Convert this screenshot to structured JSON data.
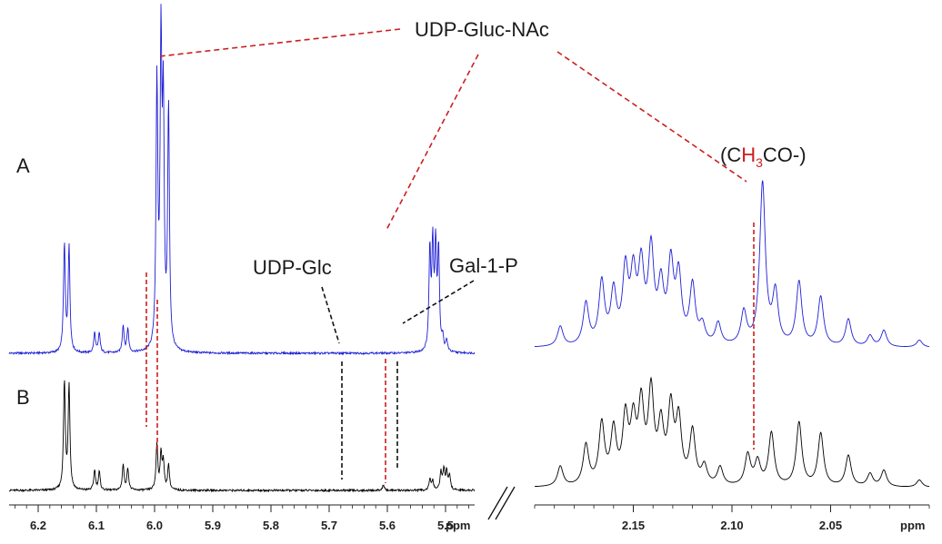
{
  "chart_data": [
    {
      "type": "line",
      "panel": "left",
      "x_unit_label": "ppm",
      "x_ticks": [
        "6.2",
        "6.1",
        "6.0",
        "5.9",
        "5.8",
        "5.7",
        "5.6",
        "5.5"
      ],
      "xlim": [
        6.25,
        5.45
      ],
      "trace_labels": [
        "A",
        "B"
      ],
      "series": [
        {
          "name": "A",
          "color": "#1f1fd6",
          "peaks": [
            {
              "x": 6.155,
              "h": 118
            },
            {
              "x": 6.147,
              "h": 115
            },
            {
              "x": 6.103,
              "h": 22
            },
            {
              "x": 6.095,
              "h": 22
            },
            {
              "x": 6.054,
              "h": 30
            },
            {
              "x": 6.046,
              "h": 26
            },
            {
              "x": 5.996,
              "h": 290
            },
            {
              "x": 5.989,
              "h": 320
            },
            {
              "x": 5.985,
              "h": 250
            },
            {
              "x": 5.976,
              "h": 265
            },
            {
              "x": 5.527,
              "h": 108
            },
            {
              "x": 5.522,
              "h": 112
            },
            {
              "x": 5.517,
              "h": 110
            },
            {
              "x": 5.512,
              "h": 108
            },
            {
              "x": 5.505,
              "h": 14
            },
            {
              "x": 5.498,
              "h": 12
            }
          ]
        },
        {
          "name": "B",
          "color": "#000000",
          "peaks": [
            {
              "x": 6.155,
              "h": 118
            },
            {
              "x": 6.147,
              "h": 115
            },
            {
              "x": 6.103,
              "h": 22
            },
            {
              "x": 6.095,
              "h": 20
            },
            {
              "x": 6.054,
              "h": 28
            },
            {
              "x": 6.046,
              "h": 24
            },
            {
              "x": 5.996,
              "h": 50
            },
            {
              "x": 5.989,
              "h": 38
            },
            {
              "x": 5.985,
              "h": 30
            },
            {
              "x": 5.976,
              "h": 28
            },
            {
              "x": 5.607,
              "h": 6
            },
            {
              "x": 5.527,
              "h": 12
            },
            {
              "x": 5.522,
              "h": 10
            },
            {
              "x": 5.508,
              "h": 20
            },
            {
              "x": 5.503,
              "h": 22
            },
            {
              "x": 5.498,
              "h": 20
            },
            {
              "x": 5.493,
              "h": 16
            }
          ]
        }
      ]
    },
    {
      "type": "line",
      "panel": "right",
      "x_unit_label": "ppm",
      "x_ticks": [
        "2.15",
        "2.10",
        "2.05"
      ],
      "xlim": [
        2.2,
        2.0
      ],
      "series": [
        {
          "name": "A",
          "color": "#1f1fd6",
          "peaks": [
            {
              "x": 2.187,
              "h": 22
            },
            {
              "x": 2.174,
              "h": 46
            },
            {
              "x": 2.166,
              "h": 68
            },
            {
              "x": 2.16,
              "h": 56
            },
            {
              "x": 2.154,
              "h": 78
            },
            {
              "x": 2.15,
              "h": 70
            },
            {
              "x": 2.146,
              "h": 80
            },
            {
              "x": 2.141,
              "h": 100
            },
            {
              "x": 2.136,
              "h": 60
            },
            {
              "x": 2.131,
              "h": 84
            },
            {
              "x": 2.127,
              "h": 72
            },
            {
              "x": 2.12,
              "h": 64
            },
            {
              "x": 2.115,
              "h": 20
            },
            {
              "x": 2.107,
              "h": 24
            },
            {
              "x": 2.094,
              "h": 36
            },
            {
              "x": 2.0845,
              "h": 178
            },
            {
              "x": 2.078,
              "h": 56
            },
            {
              "x": 2.066,
              "h": 70
            },
            {
              "x": 2.055,
              "h": 54
            },
            {
              "x": 2.041,
              "h": 30
            },
            {
              "x": 2.03,
              "h": 12
            },
            {
              "x": 2.023,
              "h": 18
            },
            {
              "x": 2.005,
              "h": 8
            }
          ]
        },
        {
          "name": "B",
          "color": "#000000",
          "peaks": [
            {
              "x": 2.187,
              "h": 22
            },
            {
              "x": 2.174,
              "h": 44
            },
            {
              "x": 2.166,
              "h": 66
            },
            {
              "x": 2.16,
              "h": 58
            },
            {
              "x": 2.154,
              "h": 70
            },
            {
              "x": 2.15,
              "h": 62
            },
            {
              "x": 2.146,
              "h": 82
            },
            {
              "x": 2.141,
              "h": 98
            },
            {
              "x": 2.136,
              "h": 60
            },
            {
              "x": 2.131,
              "h": 80
            },
            {
              "x": 2.127,
              "h": 68
            },
            {
              "x": 2.12,
              "h": 58
            },
            {
              "x": 2.114,
              "h": 20
            },
            {
              "x": 2.106,
              "h": 20
            },
            {
              "x": 2.092,
              "h": 34
            },
            {
              "x": 2.087,
              "h": 26
            },
            {
              "x": 2.08,
              "h": 58
            },
            {
              "x": 2.066,
              "h": 70
            },
            {
              "x": 2.055,
              "h": 58
            },
            {
              "x": 2.041,
              "h": 34
            },
            {
              "x": 2.03,
              "h": 14
            },
            {
              "x": 2.023,
              "h": 18
            },
            {
              "x": 2.005,
              "h": 8
            }
          ]
        }
      ]
    }
  ],
  "annotations": {
    "main": "UDP-Gluc-NAc",
    "udp_glc": "UDP-Glc",
    "gal1p": "Gal-1-P",
    "acetyl_open": "(C",
    "acetyl_h": "H",
    "acetyl_sub": "3",
    "acetyl_close": "CO-)"
  },
  "colors": {
    "trace_a": "#1f1fd6",
    "trace_b": "#000000",
    "red_guide": "#cc1e1e",
    "black_guide": "#111111"
  }
}
